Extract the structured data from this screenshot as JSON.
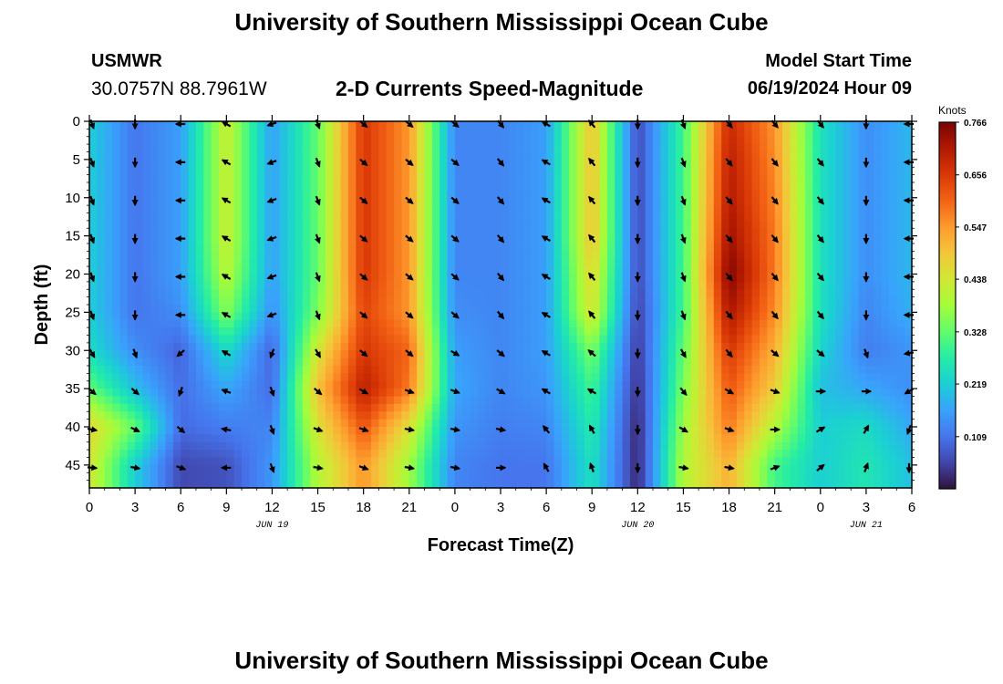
{
  "header": {
    "title": "University of Southern Mississippi Ocean Cube",
    "station_id": "USMWR",
    "station_coords": "30.0757N  88.7961W",
    "chart_title": "2-D Currents Speed-Magnitude",
    "model_start_label": "Model Start Time",
    "model_start_value": "06/19/2024 Hour 09"
  },
  "footer": {
    "title": "University of Southern Mississippi Ocean Cube"
  },
  "chart_data": {
    "type": "heatmap",
    "title": "2-D Currents Speed-Magnitude",
    "xlabel": "Forecast Time(Z)",
    "ylabel": "Depth (ft)",
    "x_hours_from_start": [
      0,
      3,
      6,
      9,
      12,
      15,
      18,
      21,
      24,
      27,
      30,
      33,
      36,
      39,
      42,
      45,
      48,
      51,
      54
    ],
    "x_tick_labels": [
      "0",
      "3",
      "6",
      "9",
      "12",
      "15",
      "18",
      "21",
      "0",
      "3",
      "6",
      "9",
      "12",
      "15",
      "18",
      "21",
      "0",
      "3",
      "6"
    ],
    "xlim": [
      0,
      54
    ],
    "date_labels": [
      {
        "label": "JUN 19",
        "hour": 12
      },
      {
        "label": "JUN 20",
        "hour": 36
      },
      {
        "label": "JUN 21",
        "hour": 51
      }
    ],
    "y_depth_ticks": [
      0,
      5,
      10,
      15,
      20,
      25,
      30,
      35,
      40,
      45
    ],
    "y_tick_labels": [
      "0",
      "5",
      "10",
      "15",
      "20",
      "25",
      "30",
      "35",
      "40",
      "45"
    ],
    "ylim": [
      0,
      48
    ],
    "colorbar": {
      "title": "Knots",
      "min": 0,
      "max": 0.766,
      "tick_values": [
        0.109,
        0.219,
        0.328,
        0.438,
        0.547,
        0.656,
        0.766
      ],
      "tick_labels": [
        "0.109",
        "0.219",
        "0.328",
        "0.438",
        "0.547",
        "0.656",
        "0.766"
      ],
      "colors": [
        "#30123b",
        "#4145ab",
        "#4675ed",
        "#39a2fc",
        "#1bcfd4",
        "#24eca6",
        "#61fc6c",
        "#a4fc3b",
        "#d1e834",
        "#f3c63a",
        "#fe9b2d",
        "#f36315",
        "#d93806",
        "#b11901",
        "#7a0403"
      ]
    },
    "arrow_depths": [
      0,
      5,
      10,
      15,
      20,
      25,
      30,
      35,
      40,
      45
    ],
    "speed_profiles": [
      {
        "hour": 0,
        "speeds": [
          0.22,
          0.22,
          0.22,
          0.22,
          0.22,
          0.22,
          0.24,
          0.33,
          0.47,
          0.44
        ]
      },
      {
        "hour": 3,
        "speeds": [
          0.11,
          0.11,
          0.11,
          0.11,
          0.11,
          0.11,
          0.14,
          0.2,
          0.33,
          0.22
        ]
      },
      {
        "hour": 6,
        "speeds": [
          0.16,
          0.16,
          0.16,
          0.16,
          0.16,
          0.14,
          0.09,
          0.1,
          0.1,
          0.06
        ]
      },
      {
        "hour": 9,
        "speeds": [
          0.43,
          0.43,
          0.43,
          0.43,
          0.41,
          0.36,
          0.24,
          0.17,
          0.12,
          0.07
        ]
      },
      {
        "hour": 12,
        "speeds": [
          0.16,
          0.16,
          0.16,
          0.16,
          0.16,
          0.14,
          0.09,
          0.1,
          0.13,
          0.15
        ]
      },
      {
        "hour": 15,
        "speeds": [
          0.33,
          0.33,
          0.33,
          0.33,
          0.33,
          0.35,
          0.44,
          0.5,
          0.45,
          0.4
        ]
      },
      {
        "hour": 18,
        "speeds": [
          0.66,
          0.66,
          0.66,
          0.66,
          0.66,
          0.64,
          0.66,
          0.7,
          0.62,
          0.55
        ]
      },
      {
        "hour": 21,
        "speeds": [
          0.55,
          0.55,
          0.55,
          0.55,
          0.55,
          0.55,
          0.6,
          0.58,
          0.45,
          0.38
        ]
      },
      {
        "hour": 24,
        "speeds": [
          0.13,
          0.13,
          0.13,
          0.13,
          0.13,
          0.14,
          0.16,
          0.17,
          0.15,
          0.13
        ]
      },
      {
        "hour": 27,
        "speeds": [
          0.13,
          0.13,
          0.13,
          0.13,
          0.13,
          0.13,
          0.13,
          0.13,
          0.12,
          0.11
        ]
      },
      {
        "hour": 30,
        "speeds": [
          0.16,
          0.16,
          0.16,
          0.16,
          0.16,
          0.16,
          0.16,
          0.15,
          0.13,
          0.11
        ]
      },
      {
        "hour": 33,
        "speeds": [
          0.5,
          0.5,
          0.5,
          0.5,
          0.47,
          0.45,
          0.35,
          0.3,
          0.27,
          0.25
        ]
      },
      {
        "hour": 36,
        "speeds": [
          0.06,
          0.06,
          0.06,
          0.06,
          0.06,
          0.05,
          0.04,
          0.03,
          0.02,
          0.02
        ]
      },
      {
        "hour": 39,
        "speeds": [
          0.3,
          0.3,
          0.3,
          0.3,
          0.3,
          0.3,
          0.33,
          0.35,
          0.38,
          0.4
        ]
      },
      {
        "hour": 42,
        "speeds": [
          0.68,
          0.7,
          0.71,
          0.73,
          0.76,
          0.72,
          0.66,
          0.62,
          0.58,
          0.52
        ]
      },
      {
        "hour": 45,
        "speeds": [
          0.55,
          0.56,
          0.57,
          0.58,
          0.58,
          0.56,
          0.52,
          0.48,
          0.4,
          0.3
        ]
      },
      {
        "hour": 48,
        "speeds": [
          0.25,
          0.25,
          0.25,
          0.25,
          0.25,
          0.25,
          0.23,
          0.2,
          0.22,
          0.22
        ]
      },
      {
        "hour": 51,
        "speeds": [
          0.14,
          0.14,
          0.14,
          0.14,
          0.14,
          0.13,
          0.12,
          0.17,
          0.24,
          0.26
        ]
      },
      {
        "hour": 54,
        "speeds": [
          0.19,
          0.19,
          0.19,
          0.19,
          0.19,
          0.18,
          0.15,
          0.14,
          0.17,
          0.2
        ]
      }
    ],
    "direction_profiles_deg": [
      {
        "hour": 0,
        "dirs": [
          160,
          160,
          160,
          160,
          160,
          160,
          150,
          130,
          100,
          95
        ]
      },
      {
        "hour": 3,
        "dirs": [
          180,
          180,
          180,
          180,
          180,
          180,
          160,
          130,
          115,
          100
        ]
      },
      {
        "hour": 6,
        "dirs": [
          270,
          270,
          270,
          270,
          270,
          270,
          230,
          200,
          130,
          110
        ]
      },
      {
        "hour": 9,
        "dirs": [
          300,
          300,
          300,
          300,
          300,
          300,
          300,
          290,
          280,
          270
        ]
      },
      {
        "hour": 12,
        "dirs": [
          250,
          250,
          250,
          250,
          250,
          250,
          200,
          160,
          160,
          160
        ]
      },
      {
        "hour": 15,
        "dirs": [
          160,
          160,
          160,
          160,
          160,
          160,
          150,
          130,
          110,
          100
        ]
      },
      {
        "hour": 18,
        "dirs": [
          130,
          130,
          130,
          130,
          130,
          130,
          130,
          120,
          110,
          110
        ]
      },
      {
        "hour": 21,
        "dirs": [
          130,
          130,
          130,
          130,
          130,
          130,
          130,
          110,
          100,
          100
        ]
      },
      {
        "hour": 24,
        "dirs": [
          130,
          130,
          130,
          130,
          130,
          130,
          120,
          110,
          100,
          100
        ]
      },
      {
        "hour": 27,
        "dirs": [
          140,
          140,
          140,
          140,
          140,
          140,
          130,
          120,
          100,
          90
        ]
      },
      {
        "hour": 30,
        "dirs": [
          300,
          300,
          300,
          300,
          300,
          300,
          300,
          300,
          320,
          330
        ]
      },
      {
        "hour": 33,
        "dirs": [
          320,
          320,
          320,
          320,
          320,
          320,
          310,
          300,
          330,
          340
        ]
      },
      {
        "hour": 36,
        "dirs": [
          180,
          180,
          180,
          180,
          180,
          180,
          180,
          180,
          180,
          180
        ]
      },
      {
        "hour": 39,
        "dirs": [
          160,
          160,
          160,
          160,
          160,
          160,
          150,
          140,
          120,
          100
        ]
      },
      {
        "hour": 42,
        "dirs": [
          140,
          140,
          140,
          140,
          140,
          140,
          140,
          120,
          110,
          100
        ]
      },
      {
        "hour": 45,
        "dirs": [
          140,
          140,
          140,
          140,
          140,
          140,
          130,
          110,
          90,
          70
        ]
      },
      {
        "hour": 48,
        "dirs": [
          140,
          140,
          140,
          140,
          140,
          140,
          130,
          90,
          60,
          50
        ]
      },
      {
        "hour": 51,
        "dirs": [
          180,
          180,
          180,
          180,
          180,
          180,
          160,
          90,
          30,
          20
        ]
      },
      {
        "hour": 54,
        "dirs": [
          270,
          270,
          270,
          270,
          270,
          270,
          260,
          240,
          200,
          180
        ]
      }
    ],
    "grid": false,
    "legend": "right"
  }
}
